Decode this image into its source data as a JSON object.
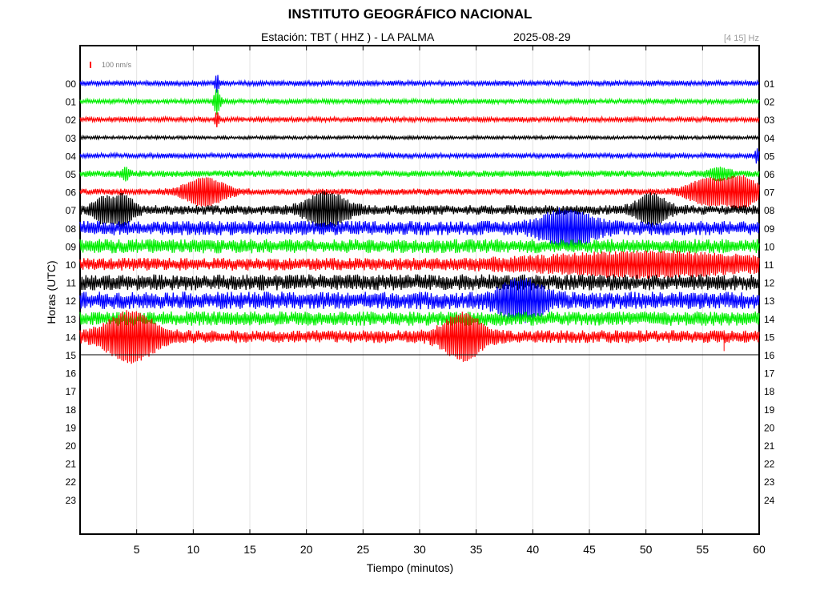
{
  "header": {
    "title": "INSTITUTO GEOGRÁFICO NACIONAL",
    "station": "Estación:  TBT ( HHZ ) - LA PALMA",
    "date": "2025-08-29",
    "band": "[4 15] Hz",
    "scale_label": "100 nm/s"
  },
  "colors": {
    "blue": "#0000ff",
    "green": "#00ee00",
    "red": "#ff0000",
    "black": "#000000",
    "grid": "#e3e3e3",
    "scale_bar": "#ff0000"
  },
  "chart_data": {
    "type": "line",
    "title": "INSTITUTO GEOGRÁFICO NACIONAL",
    "xlabel": "Tiempo (minutos)",
    "ylabel": "Horas (UTC)",
    "xlim": [
      0,
      60
    ],
    "xticks": [
      5,
      10,
      15,
      20,
      25,
      30,
      35,
      40,
      45,
      50,
      55,
      60
    ],
    "grid": true,
    "left_labels": [
      "00",
      "01",
      "02",
      "03",
      "04",
      "05",
      "06",
      "07",
      "08",
      "09",
      "10",
      "11",
      "12",
      "13",
      "14",
      "15",
      "16",
      "17",
      "18",
      "19",
      "20",
      "21",
      "22",
      "23"
    ],
    "right_labels": [
      "01",
      "02",
      "03",
      "04",
      "05",
      "06",
      "07",
      "08",
      "09",
      "10",
      "11",
      "12",
      "13",
      "14",
      "15",
      "16",
      "17",
      "18",
      "19",
      "20",
      "21",
      "22",
      "23",
      "24"
    ],
    "color_cycle": [
      "blue",
      "green",
      "red",
      "black"
    ],
    "traces": [
      {
        "hour": 0,
        "amplitude": 3,
        "events": [
          {
            "t": 12.1,
            "amp": 10,
            "dur": 0.2
          }
        ]
      },
      {
        "hour": 1,
        "amplitude": 3,
        "events": [
          {
            "t": 12.1,
            "amp": 14,
            "dur": 0.3
          }
        ]
      },
      {
        "hour": 2,
        "amplitude": 3,
        "events": [
          {
            "t": 12.1,
            "amp": 8,
            "dur": 0.2
          }
        ]
      },
      {
        "hour": 3,
        "amplitude": 2,
        "events": []
      },
      {
        "hour": 4,
        "amplitude": 3,
        "events": [
          {
            "t": 59.8,
            "amp": 8,
            "dur": 0.2
          }
        ]
      },
      {
        "hour": 5,
        "amplitude": 4,
        "events": [
          {
            "t": 4.0,
            "amp": 6,
            "dur": 0.4
          },
          {
            "t": 56.5,
            "amp": 6,
            "dur": 1.0
          }
        ]
      },
      {
        "hour": 6,
        "amplitude": 4,
        "events": [
          {
            "t": 11.0,
            "amp": 15,
            "dur": 2.0
          },
          {
            "t": 55.5,
            "amp": 14,
            "dur": 2.0
          },
          {
            "t": 58.5,
            "amp": 16,
            "dur": 1.5
          }
        ]
      },
      {
        "hour": 7,
        "amplitude": 6,
        "events": [
          {
            "t": 2.0,
            "amp": 12,
            "dur": 1.0
          },
          {
            "t": 3.8,
            "amp": 16,
            "dur": 1.0
          },
          {
            "t": 21.8,
            "amp": 18,
            "dur": 2.0
          },
          {
            "t": 50.5,
            "amp": 16,
            "dur": 1.5
          }
        ]
      },
      {
        "hour": 8,
        "amplitude": 9,
        "events": [
          {
            "t": 43.0,
            "amp": 18,
            "dur": 2.5
          }
        ]
      },
      {
        "hour": 9,
        "amplitude": 9,
        "events": []
      },
      {
        "hour": 10,
        "amplitude": 8,
        "events": [
          {
            "t": 50.0,
            "amp": 10,
            "dur": 10.0
          }
        ]
      },
      {
        "hour": 11,
        "amplitude": 10,
        "events": []
      },
      {
        "hour": 12,
        "amplitude": 11,
        "events": [
          {
            "t": 39.0,
            "amp": 20,
            "dur": 2.0
          }
        ]
      },
      {
        "hour": 13,
        "amplitude": 9,
        "events": []
      },
      {
        "hour": 14,
        "amplitude": 8,
        "events": [
          {
            "t": 4.5,
            "amp": 26,
            "dur": 2.5
          },
          {
            "t": 33.8,
            "amp": 24,
            "dur": 2.0
          }
        ]
      },
      {
        "hour": 15,
        "amplitude": 0,
        "events": []
      }
    ]
  }
}
